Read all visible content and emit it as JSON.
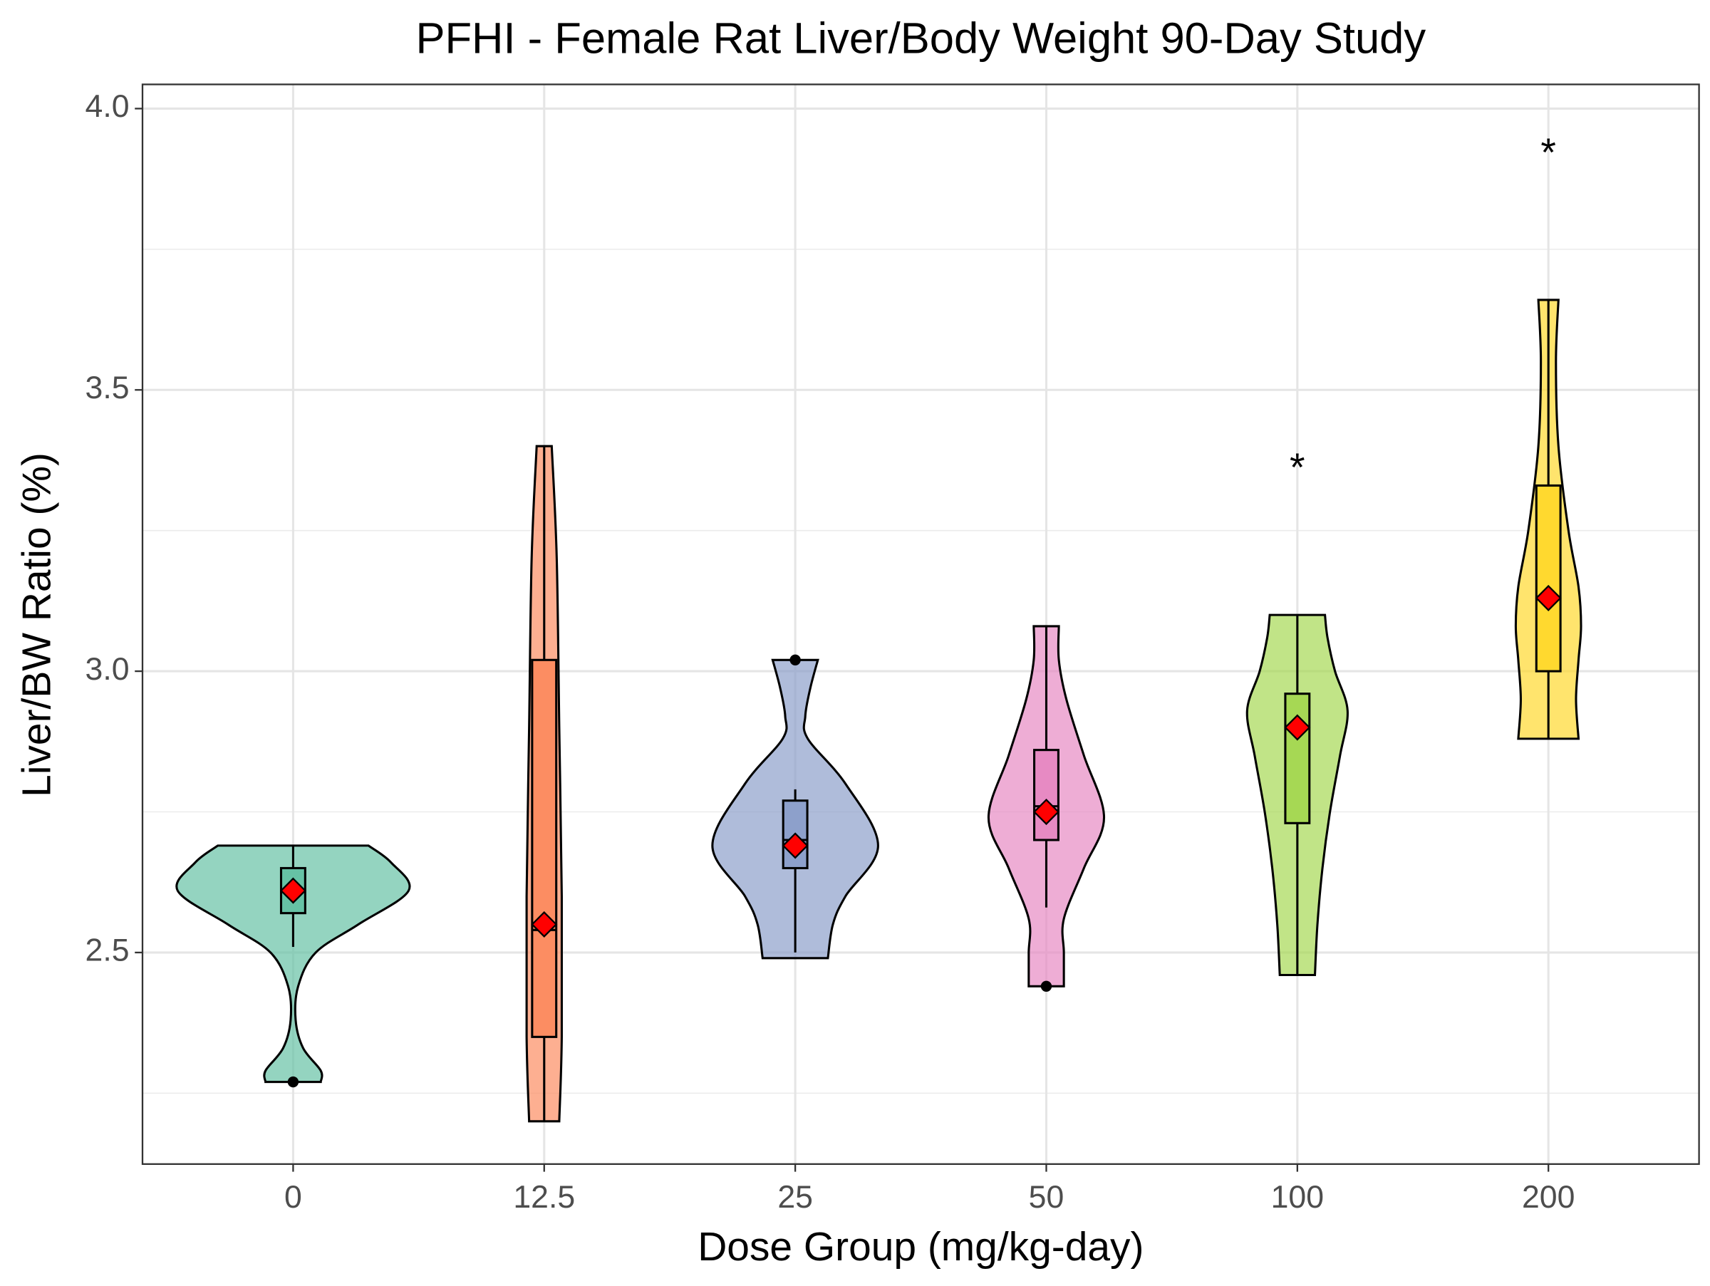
{
  "chart_data": {
    "type": "violin",
    "title": "PFHI - Female Rat Liver/Body Weight 90-Day Study",
    "x_label": "Dose Group (mg/kg-day)",
    "y_label": "Liver/BW Ratio (%)",
    "categories": [
      "0",
      "12.5",
      "25",
      "50",
      "100",
      "200"
    ],
    "ylim": [
      2.124,
      4.043
    ],
    "yticks": [
      2.5,
      {
        "value": 3,
        "label": "3.0"
      },
      3.5,
      {
        "value": 4,
        "label": "4.0"
      }
    ],
    "y_minor_grid": [
      2.25,
      2.75,
      3.25,
      3.75
    ],
    "grid": true,
    "mean_color": "#ff0000",
    "groups": [
      {
        "color": "#66c2a5",
        "min": 2.51,
        "q1": 2.57,
        "median": 2.61,
        "q3": 2.65,
        "max": 2.69,
        "mean": 2.61,
        "outliers": [
          2.27
        ],
        "violin_y": [
          2.27,
          2.29,
          2.33,
          2.38,
          2.44,
          2.5,
          2.55,
          2.61,
          2.66,
          2.69
        ],
        "violin_width": [
          0.11,
          0.11,
          0.04,
          0.01,
          0.02,
          0.09,
          0.26,
          0.46,
          0.39,
          0.3
        ]
      },
      {
        "color": "#fc8d62",
        "min": 2.2,
        "q1": 2.35,
        "median": 2.54,
        "q3": 3.02,
        "max": 3.4,
        "mean": 2.55,
        "outliers": [],
        "violin_y": [
          2.2,
          2.35,
          2.6,
          2.9,
          3.2,
          3.4
        ],
        "violin_width": [
          0.06,
          0.07,
          0.07,
          0.06,
          0.05,
          0.03
        ]
      },
      {
        "color": "#8da0cb",
        "min": 2.5,
        "q1": 2.65,
        "median": 2.7,
        "q3": 2.77,
        "max": 2.79,
        "mean": 2.69,
        "outliers": [
          3.02
        ],
        "violin_y": [
          2.49,
          2.55,
          2.6,
          2.69,
          2.8,
          2.88,
          2.92,
          2.97,
          3.02
        ],
        "violin_width": [
          0.13,
          0.15,
          0.2,
          0.33,
          0.2,
          0.05,
          0.04,
          0.06,
          0.09
        ]
      },
      {
        "color": "#e78ac3",
        "min": 2.58,
        "q1": 2.7,
        "median": 2.76,
        "q3": 2.86,
        "max": 3.08,
        "mean": 2.75,
        "outliers": [
          2.44
        ],
        "violin_y": [
          2.44,
          2.5,
          2.56,
          2.65,
          2.74,
          2.85,
          2.95,
          3.02,
          3.08
        ],
        "violin_width": [
          0.07,
          0.07,
          0.07,
          0.15,
          0.23,
          0.15,
          0.08,
          0.05,
          0.05
        ]
      },
      {
        "color": "#a6d854",
        "min": 2.46,
        "q1": 2.73,
        "median": 2.9,
        "q3": 2.96,
        "max": 3.1,
        "mean": 2.9,
        "outliers": [],
        "violin_y": [
          2.46,
          2.55,
          2.65,
          2.75,
          2.85,
          2.93,
          3.0,
          3.06,
          3.1
        ],
        "violin_width": [
          0.07,
          0.08,
          0.1,
          0.13,
          0.17,
          0.2,
          0.15,
          0.12,
          0.11
        ],
        "annotation": "*",
        "annotation_y": 3.38
      },
      {
        "color": "#ffd92f",
        "min": 2.88,
        "q1": 3.0,
        "median": 3.13,
        "q3": 3.33,
        "max": 3.66,
        "mean": 3.13,
        "outliers": [],
        "violin_y": [
          2.88,
          2.95,
          3.02,
          3.08,
          3.15,
          3.25,
          3.4,
          3.55,
          3.66
        ],
        "violin_width": [
          0.12,
          0.11,
          0.12,
          0.13,
          0.12,
          0.08,
          0.04,
          0.03,
          0.04
        ],
        "annotation": "*",
        "annotation_y": 3.94
      }
    ]
  }
}
